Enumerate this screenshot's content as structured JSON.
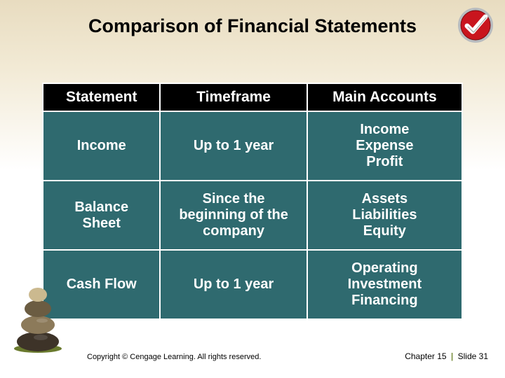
{
  "slide": {
    "title": "Comparison of Financial Statements",
    "background_gradient_top": "#e8dcc0",
    "background_gradient_bottom": "#ffffff",
    "title_color": "#000000",
    "title_fontsize": 27
  },
  "checkmark": {
    "outer_color": "#b8bcbf",
    "inner_color": "#c9151e",
    "tick_color": "#ffffff"
  },
  "table": {
    "header_bg": "#000000",
    "header_fg": "#ffffff",
    "cell_bg": "#2f6a6f",
    "cell_fg": "#ffffff",
    "border_color": "#ffffff",
    "header_fontsize": 21,
    "cell_fontsize": 20,
    "columns": [
      "Statement",
      "Timeframe",
      "Main Accounts"
    ],
    "rows": [
      {
        "statement": "Income",
        "timeframe": "Up to 1 year",
        "accounts": "Income\nExpense\nProfit"
      },
      {
        "statement": "Balance\nSheet",
        "timeframe": "Since the\nbeginning of the\ncompany",
        "accounts": "Assets\nLiabilities\nEquity"
      },
      {
        "statement": "Cash Flow",
        "timeframe": "Up to 1 year",
        "accounts": "Operating\nInvestment\nFinancing"
      }
    ]
  },
  "rocks_image": {
    "stone_colors": [
      "#3d3328",
      "#8c7a5a",
      "#6b5c42",
      "#cbb98f"
    ],
    "grass_color": "#6a7a2e"
  },
  "footer": {
    "copyright": "Copyright © Cengage Learning. All rights reserved.",
    "chapter_label": "Chapter 15",
    "slide_label": "Slide 31",
    "sep_color": "#7a8f3f"
  }
}
